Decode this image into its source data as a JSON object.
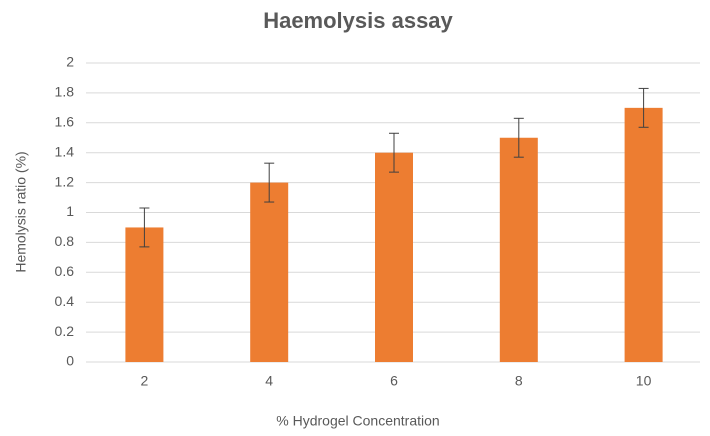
{
  "chart_data": {
    "type": "bar",
    "title": "Haemolysis assay",
    "x_label": "% Hydrogel Concentration",
    "y_label": "Hemolysis ratio (%)",
    "categories": [
      "2",
      "4",
      "6",
      "8",
      "10"
    ],
    "values": [
      0.9,
      1.2,
      1.4,
      1.5,
      1.7
    ],
    "errors": [
      0.13,
      0.13,
      0.13,
      0.13,
      0.13
    ],
    "color": "#ed7d31",
    "ylim": [
      0,
      2
    ],
    "yticks": [
      0,
      0.2,
      0.4,
      0.6,
      0.8,
      1,
      1.2,
      1.4,
      1.6,
      1.8,
      2
    ],
    "grid": true
  }
}
